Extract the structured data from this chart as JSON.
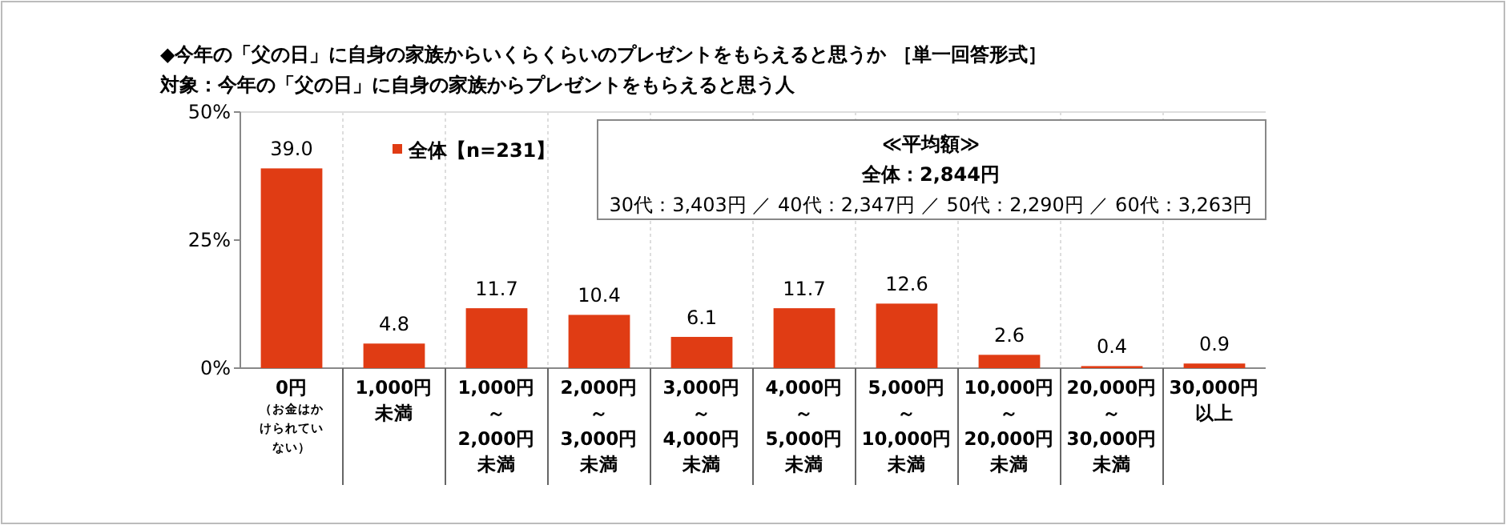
{
  "chart_data": {
    "type": "bar",
    "title": "◆今年の「父の日」に自身の家族からいくらくらいのプレゼントをもらえると思うか ［単一回答形式］",
    "subtitle": "対象：今年の「父の日」に自身の家族からプレゼントをもらえると思う人",
    "categories": [
      "0円（お金はかけられていない）",
      "1,000円未満",
      "1,000円～2,000円未満",
      "2,000円～3,000円未満",
      "3,000円～4,000円未満",
      "4,000円～5,000円未満",
      "5,000円～10,000円未満",
      "10,000円～20,000円未満",
      "20,000円～30,000円未満",
      "30,000円以上"
    ],
    "series": [
      {
        "name": "全体【n=231】",
        "color": "#e03c14",
        "values": [
          39.0,
          4.8,
          11.7,
          10.4,
          6.1,
          11.7,
          12.6,
          2.6,
          0.4,
          0.9
        ],
        "value_labels": [
          "39.0",
          "4.8",
          "11.7",
          "10.4",
          "6.1",
          "11.7",
          "12.6",
          "2.6",
          "0.4",
          "0.9"
        ]
      }
    ],
    "ylim": [
      0,
      50
    ],
    "yticks": [
      {
        "value": 0,
        "label": "0%"
      },
      {
        "value": 25,
        "label": "25%"
      },
      {
        "value": 50,
        "label": "50%"
      }
    ],
    "grid": "x",
    "legend": "top left",
    "annotations": [
      "≪平均額≫",
      "全体：2,844円",
      "30代：3,403円 ／ 40代：2,347円 ／ 50代：2,290円 ／ 60代：3,263円"
    ]
  }
}
